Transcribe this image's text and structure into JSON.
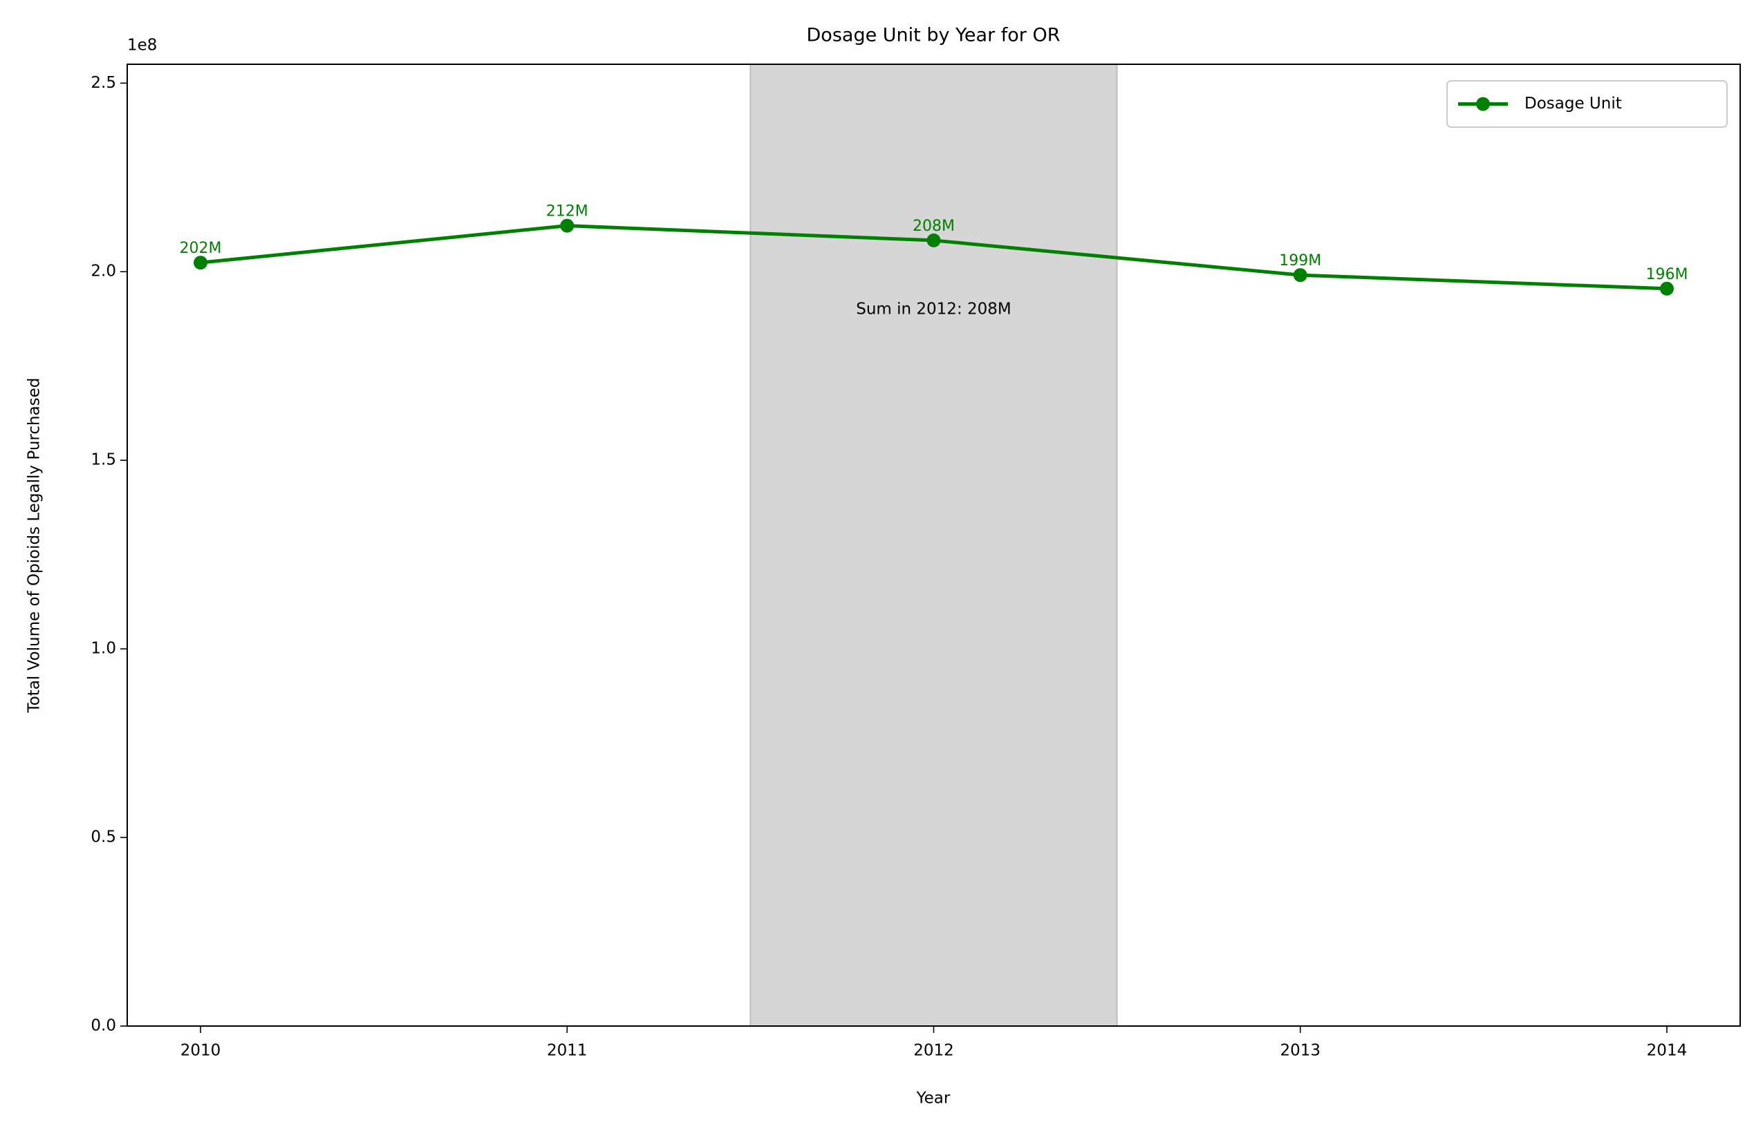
{
  "chart_data": {
    "type": "line",
    "title": "Dosage Unit by Year for OR",
    "xlabel": "Year",
    "ylabel": "Total Volume of Opioids Legally Purchased",
    "y_offset_label": "1e8",
    "x": [
      2010,
      2011,
      2012,
      2013,
      2014
    ],
    "series": [
      {
        "name": "Dosage Unit",
        "color": "#008000",
        "values": [
          202400000,
          212200000,
          208300000,
          199100000,
          195500000
        ],
        "value_labels": [
          "202M",
          "212M",
          "208M",
          "199M",
          "196M"
        ]
      }
    ],
    "xlim": [
      2009.8,
      2014.2
    ],
    "xticks": [
      2010,
      2011,
      2012,
      2013,
      2014
    ],
    "ylim": [
      0,
      255000000
    ],
    "yticks": [
      {
        "value": 0,
        "label": "0.0"
      },
      {
        "value": 50000000,
        "label": "0.5"
      },
      {
        "value": 100000000,
        "label": "1.0"
      },
      {
        "value": 150000000,
        "label": "1.5"
      },
      {
        "value": 200000000,
        "label": "2.0"
      },
      {
        "value": 250000000,
        "label": "2.5"
      }
    ],
    "highlight": {
      "xrange": [
        2011.5,
        2012.5
      ],
      "color": "#d6d6d6",
      "annotation": "Sum in 2012: 208M"
    },
    "legend": "upper right",
    "grid": false
  }
}
